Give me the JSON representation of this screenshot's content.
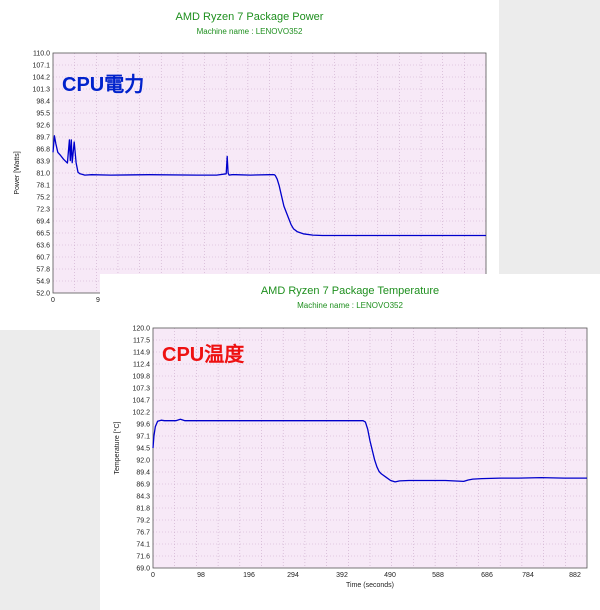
{
  "colors": {
    "title_green": "#1e8f1e",
    "plot_bg": "#f7e9f7",
    "grid": "#c9a9c9",
    "series": "#0000cc",
    "power_label": "#0022cc",
    "temp_label": "#ee1111"
  },
  "power": {
    "big_label": "CPU電力",
    "title": "AMD Ryzen 7 Package Power",
    "subtitle": "Machine name : LENOVO352"
  },
  "temperature": {
    "big_label": "CPU温度",
    "title": "AMD Ryzen 7 Package Temperature",
    "subtitle": "Machine name : LENOVO352"
  },
  "chart_data": [
    {
      "type": "line",
      "title": "AMD Ryzen 7 Package Power",
      "subtitle": "Machine name : LENOVO352",
      "ylabel": "Power [Watts]",
      "xlabel": "",
      "ylim": [
        52.0,
        110.0
      ],
      "xlim": [
        0,
        900
      ],
      "y_ticks": [
        "110.0",
        "107.1",
        "104.2",
        "101.3",
        "98.4",
        "95.5",
        "92.6",
        "89.7",
        "86.8",
        "83.9",
        "81.0",
        "78.1",
        "75.2",
        "72.3",
        "69.4",
        "66.5",
        "63.6",
        "60.7",
        "57.8",
        "54.9",
        "52.0"
      ],
      "x_ticks": [
        "0",
        "9"
      ],
      "grid": true,
      "series": [
        {
          "x": [
            0,
            3,
            6,
            10,
            16,
            22,
            30,
            34,
            36,
            38,
            40,
            44,
            48,
            52,
            56,
            60,
            66,
            80,
            120,
            200,
            300,
            340,
            360,
            362,
            364,
            366,
            372,
            380,
            410,
            450,
            460,
            462,
            466,
            470,
            475,
            480,
            490,
            495,
            500,
            508,
            520,
            540,
            560,
            600,
            650,
            700,
            740,
            780,
            820,
            860,
            900
          ],
          "y": [
            86,
            90,
            88,
            86,
            85.2,
            84.3,
            83.4,
            89,
            84,
            89,
            83.5,
            88.5,
            83.5,
            81.2,
            80.8,
            80.7,
            80.5,
            80.6,
            80.5,
            80.6,
            80.5,
            80.5,
            80.8,
            85,
            81,
            80.5,
            80.6,
            80.6,
            80.5,
            80.6,
            80.6,
            80.4,
            79.5,
            78,
            75.5,
            73,
            70,
            68.5,
            67.5,
            66.8,
            66.3,
            66,
            65.9,
            65.9,
            65.9,
            65.9,
            65.9,
            65.9,
            65.9,
            65.9,
            65.9
          ]
        }
      ]
    },
    {
      "type": "line",
      "title": "AMD Ryzen 7 Package Temperature",
      "subtitle": "Machine name : LENOVO352",
      "ylabel": "Temperature [°C]",
      "xlabel": "Time (seconds)",
      "ylim": [
        69.0,
        120.0
      ],
      "xlim": [
        0,
        950
      ],
      "y_ticks": [
        "120.0",
        "117.5",
        "114.9",
        "112.4",
        "109.8",
        "107.3",
        "104.7",
        "102.2",
        "99.6",
        "97.1",
        "94.5",
        "92.0",
        "89.4",
        "86.9",
        "84.3",
        "81.8",
        "79.2",
        "76.7",
        "74.1",
        "71.6",
        "69.0"
      ],
      "x_ticks": [
        "0",
        "98",
        "196",
        "294",
        "392",
        "490",
        "588",
        "686",
        "784",
        "882"
      ],
      "grid": true,
      "series": [
        {
          "x": [
            0,
            2,
            5,
            10,
            18,
            25,
            50,
            60,
            70,
            100,
            200,
            300,
            400,
            440,
            460,
            465,
            470,
            475,
            480,
            485,
            490,
            495,
            500,
            510,
            520,
            530,
            540,
            560,
            580,
            600,
            620,
            640,
            680,
            690,
            700,
            720,
            760,
            800,
            850,
            900,
            950
          ],
          "y": [
            94.5,
            97,
            99,
            100.2,
            100.4,
            100.3,
            100.3,
            100.6,
            100.3,
            100.3,
            100.3,
            100.3,
            100.3,
            100.3,
            100.3,
            100,
            98.5,
            96,
            94,
            92,
            90.5,
            89.5,
            89,
            88.3,
            87.6,
            87.3,
            87.5,
            87.6,
            87.6,
            87.6,
            87.6,
            87.6,
            87.4,
            87.7,
            87.9,
            88,
            88.1,
            88.1,
            88.2,
            88.1,
            88.1
          ]
        }
      ]
    }
  ]
}
